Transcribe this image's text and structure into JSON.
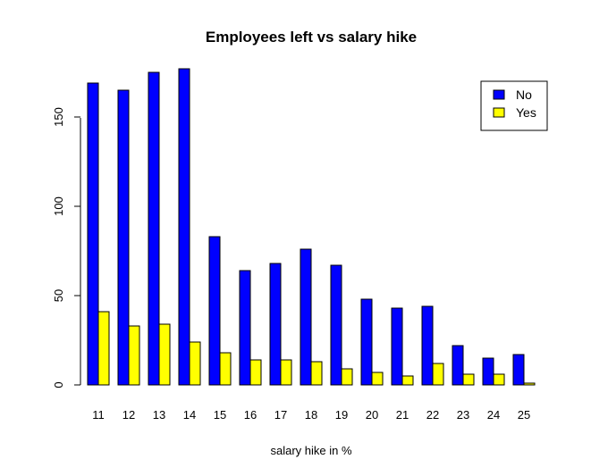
{
  "chart_data": {
    "type": "bar",
    "title": "Employees left vs salary hike",
    "xlabel": "salary hike in %",
    "ylabel": "",
    "categories": [
      "11",
      "12",
      "13",
      "14",
      "15",
      "16",
      "17",
      "18",
      "19",
      "20",
      "21",
      "22",
      "23",
      "24",
      "25"
    ],
    "series": [
      {
        "name": "No",
        "color": "#0000ff",
        "values": [
          169,
          165,
          175,
          177,
          83,
          64,
          68,
          76,
          67,
          48,
          43,
          44,
          22,
          15,
          17
        ]
      },
      {
        "name": "Yes",
        "color": "#ffff00",
        "values": [
          41,
          33,
          34,
          24,
          18,
          14,
          14,
          13,
          9,
          7,
          5,
          12,
          6,
          6,
          1
        ]
      }
    ],
    "ylim": [
      0,
      178
    ],
    "yticks": [
      0,
      50,
      100,
      150
    ],
    "legend": "top-right",
    "grid": false
  }
}
